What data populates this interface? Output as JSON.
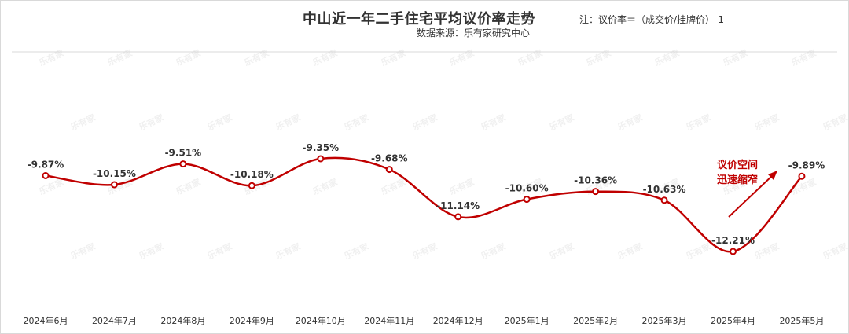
{
  "header": {
    "title": "中山近一年二手住宅平均议价率走势",
    "source": "数据来源：乐有家研究中心",
    "note": "注：议价率＝（成交价/挂牌价）-1"
  },
  "watermark": {
    "text": "乐有家"
  },
  "annotation": {
    "line1": "议价空间",
    "line2": "迅速缩窄"
  },
  "colors": {
    "line": "#c00000",
    "grid": "#d9d9d9",
    "point_fill": "#ffffff"
  },
  "chart_data": {
    "type": "line",
    "title": "中山近一年二手住宅平均议价率走势",
    "xlabel": "",
    "ylabel": "",
    "grid": false,
    "unit": "%",
    "categories": [
      "2024年6月",
      "2024年7月",
      "2024年8月",
      "2024年9月",
      "2024年10月",
      "2024年11月",
      "2024年12月",
      "2025年1月",
      "2025年2月",
      "2025年3月",
      "2025年4月",
      "2025年5月"
    ],
    "series": [
      {
        "values": [
          -9.87,
          -10.15,
          -9.51,
          -10.18,
          -9.35,
          -9.68,
          -11.14,
          -10.6,
          -10.36,
          -10.63,
          -12.21,
          -9.89
        ],
        "labels": [
          "-9.87%",
          "-10.15%",
          "-9.51%",
          "-10.18%",
          "-9.35%",
          "-9.68%",
          "-11.14%",
          "-10.60%",
          "-10.36%",
          "-10.63%",
          "-12.21%",
          "-9.89%"
        ]
      }
    ]
  }
}
